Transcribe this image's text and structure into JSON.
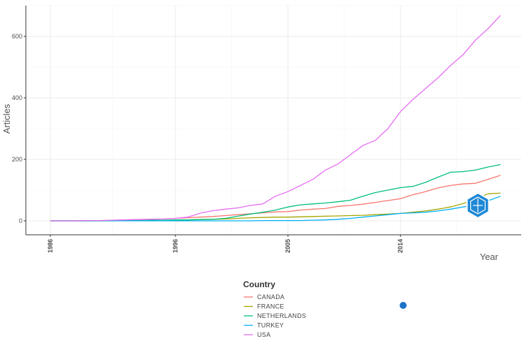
{
  "chart_data": {
    "type": "line",
    "title": "",
    "xlabel": "Year",
    "ylabel": "Articles",
    "xlim": [
      1986,
      2022
    ],
    "ylim": [
      -20,
      700
    ],
    "x_ticks": [
      1986,
      1996,
      2005,
      2014
    ],
    "y_ticks": [
      0,
      200,
      400,
      600
    ],
    "grid": true,
    "legend_title": "Country",
    "legend_position": "bottom",
    "x": [
      1986,
      1987,
      1988,
      1989,
      1990,
      1991,
      1992,
      1993,
      1994,
      1995,
      1996,
      1997,
      1998,
      1999,
      2000,
      2001,
      2002,
      2003,
      2004,
      2005,
      2006,
      2007,
      2008,
      2009,
      2010,
      2011,
      2012,
      2013,
      2014,
      2015,
      2016,
      2017,
      2018,
      2019,
      2020,
      2021,
      2022
    ],
    "series": [
      {
        "name": "CANADA",
        "color": "#F8766D",
        "values": [
          0,
          0,
          0,
          1,
          1,
          2,
          3,
          4,
          5,
          6,
          8,
          10,
          12,
          14,
          17,
          20,
          23,
          26,
          29,
          30,
          35,
          38,
          40,
          47,
          50,
          54,
          60,
          66,
          72,
          85,
          95,
          107,
          115,
          120,
          122,
          135,
          148
        ]
      },
      {
        "name": "FRANCE",
        "color": "#A3A500",
        "values": [
          0,
          0,
          0,
          0,
          0,
          0,
          1,
          1,
          1,
          1,
          2,
          3,
          4,
          5,
          6,
          8,
          10,
          11,
          12,
          12,
          13,
          14,
          15,
          16,
          17,
          18,
          20,
          22,
          24,
          28,
          32,
          38,
          45,
          56,
          70,
          88,
          90
        ]
      },
      {
        "name": "NETHERLANDS",
        "color": "#00BF7D",
        "values": [
          0,
          0,
          0,
          0,
          0,
          1,
          1,
          1,
          2,
          2,
          3,
          3,
          4,
          5,
          8,
          15,
          22,
          28,
          35,
          45,
          52,
          55,
          58,
          62,
          67,
          80,
          92,
          100,
          108,
          112,
          125,
          142,
          158,
          160,
          165,
          175,
          183
        ]
      },
      {
        "name": "TURKEY",
        "color": "#00B0F6",
        "values": [
          0,
          0,
          0,
          0,
          0,
          0,
          0,
          0,
          0,
          0,
          0,
          0,
          0,
          0,
          0,
          0,
          0,
          1,
          1,
          1,
          1,
          2,
          3,
          5,
          8,
          12,
          16,
          20,
          24,
          26,
          28,
          32,
          38,
          45,
          52,
          65,
          80
        ]
      },
      {
        "name": "USA",
        "color": "#E76BF3",
        "values": [
          0,
          0,
          0,
          1,
          1,
          2,
          3,
          4,
          5,
          6,
          8,
          12,
          25,
          33,
          38,
          42,
          50,
          55,
          80,
          95,
          115,
          135,
          165,
          185,
          215,
          245,
          262,
          300,
          355,
          395,
          430,
          465,
          505,
          540,
          588,
          625,
          668
        ]
      }
    ]
  }
}
